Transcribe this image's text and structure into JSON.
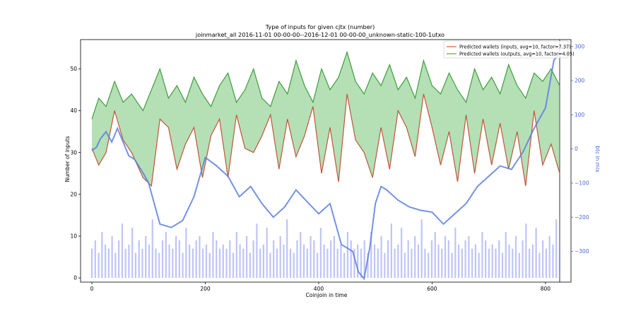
{
  "chart_data": {
    "type": "line",
    "title": "Type of inputs for given cjtx (number)",
    "subtitle": "joinmarket_all 2016-11-01 00-00-00--2016-12-01 00-00-00_unknown-static-100-1utxo",
    "xlabel": "Coinjoin in time",
    "ylabel": "Number of inputs",
    "y2label": "btc in mix",
    "xlim": [
      -20,
      845
    ],
    "ylim": [
      -1,
      57
    ],
    "y2lim": [
      -390,
      320
    ],
    "xticks": [
      0,
      200,
      400,
      600,
      800
    ],
    "yticks": [
      0,
      10,
      20,
      30,
      40,
      50
    ],
    "y2ticks": [
      -300,
      -200,
      -100,
      0,
      100,
      200,
      300
    ],
    "y2tick_labels": [
      "−300",
      "−200",
      "−100",
      "0",
      "100",
      "200",
      "300"
    ],
    "grid": false,
    "legend_position": "top-right",
    "series": [
      {
        "name": "Predicted wallets (inputs, avg=10, factor=7.37)",
        "color": "#c0563a",
        "axis": "left",
        "x": [
          0,
          12,
          25,
          40,
          55,
          70,
          90,
          105,
          120,
          135,
          150,
          165,
          180,
          195,
          210,
          225,
          240,
          255,
          270,
          285,
          300,
          315,
          330,
          345,
          360,
          375,
          390,
          405,
          420,
          435,
          450,
          465,
          480,
          495,
          510,
          525,
          540,
          555,
          570,
          585,
          600,
          615,
          630,
          645,
          660,
          675,
          690,
          705,
          720,
          735,
          750,
          765,
          780,
          795,
          810,
          825
        ],
        "values": [
          31,
          27,
          30,
          40,
          33,
          30,
          24,
          22,
          38,
          36,
          26,
          32,
          36,
          24,
          34,
          38,
          24,
          39,
          31,
          30,
          34,
          39,
          26,
          38,
          29,
          34,
          41,
          25,
          36,
          23,
          44,
          33,
          30,
          24,
          36,
          26,
          40,
          36,
          29,
          44,
          36,
          27,
          35,
          23,
          39,
          25,
          38,
          27,
          37,
          26,
          35,
          22,
          40,
          27,
          32,
          25
        ]
      },
      {
        "name": "Predicted wallets (outputs, avg=10, factor=4.05)",
        "color": "#3f9d3f",
        "axis": "left",
        "x": [
          0,
          12,
          25,
          40,
          55,
          70,
          90,
          105,
          120,
          135,
          150,
          165,
          180,
          195,
          210,
          225,
          240,
          255,
          270,
          285,
          300,
          315,
          330,
          345,
          360,
          375,
          390,
          405,
          420,
          435,
          450,
          465,
          480,
          495,
          510,
          525,
          540,
          555,
          570,
          585,
          600,
          615,
          630,
          645,
          660,
          675,
          690,
          705,
          720,
          735,
          750,
          765,
          780,
          795,
          810,
          825
        ],
        "values": [
          38,
          43,
          41,
          47,
          42,
          44,
          40,
          45,
          50,
          43,
          46,
          42,
          48,
          44,
          41,
          46,
          49,
          42,
          45,
          50,
          43,
          41,
          47,
          44,
          52,
          46,
          42,
          50,
          45,
          48,
          54,
          47,
          44,
          49,
          46,
          51,
          45,
          48,
          43,
          52,
          46,
          44,
          49,
          45,
          42,
          50,
          45,
          48,
          44,
          51,
          46,
          43,
          49,
          47,
          50,
          46
        ]
      },
      {
        "name": "",
        "color": "#5c7fe0",
        "axis": "right",
        "x": [
          0,
          8,
          15,
          25,
          35,
          45,
          55,
          65,
          75,
          90,
          100,
          120,
          140,
          160,
          180,
          200,
          220,
          240,
          260,
          280,
          300,
          320,
          340,
          360,
          380,
          400,
          420,
          440,
          460,
          470,
          480,
          490,
          500,
          510,
          520,
          540,
          560,
          580,
          600,
          620,
          640,
          660,
          680,
          700,
          720,
          740,
          760,
          780,
          800,
          815,
          825
        ],
        "values": [
          -5,
          5,
          30,
          50,
          20,
          60,
          20,
          -20,
          -30,
          -70,
          -100,
          -220,
          -230,
          -210,
          -140,
          -25,
          -50,
          -80,
          -140,
          -110,
          -160,
          -200,
          -170,
          -120,
          -155,
          -190,
          -160,
          -280,
          -300,
          -360,
          -380,
          -290,
          -160,
          -110,
          -120,
          -150,
          -170,
          -180,
          -185,
          -220,
          -190,
          -160,
          -110,
          -80,
          -50,
          -60,
          -10,
          60,
          120,
          260,
          280
        ]
      }
    ],
    "bars": {
      "color": "#8b93f0",
      "axis": "left",
      "description_free": true,
      "x_start": 0,
      "x_end": 825,
      "typical_height": 7,
      "values": [
        7,
        9,
        6,
        11,
        8,
        7,
        10,
        6,
        9,
        13,
        7,
        8,
        12,
        6,
        9,
        7,
        10,
        8,
        14,
        7,
        6,
        9,
        11,
        8,
        7,
        10,
        9,
        6,
        12,
        8,
        7,
        9,
        10,
        7,
        8,
        6,
        11,
        9,
        7,
        8
      ]
    },
    "legend": [
      {
        "label": "Predicted wallets (inputs, avg=10, factor=7.37)",
        "color": "#d9735a"
      },
      {
        "label": "Predicted wallets (outputs, avg=10, factor=4.05)",
        "color": "#5cb85c"
      }
    ]
  }
}
